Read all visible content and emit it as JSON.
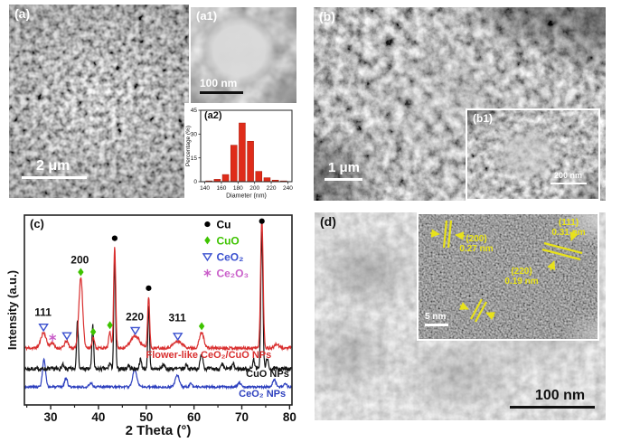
{
  "figure": {
    "panels": {
      "a": {
        "label": "(a)",
        "scale_bar": "2 μm"
      },
      "a1": {
        "label": "(a1)",
        "scale_bar": "100 nm"
      },
      "a2": {
        "label": "(a2)"
      },
      "b": {
        "label": "(b)",
        "scale_bar": "1 μm"
      },
      "b1": {
        "label": "(b1)",
        "scale_bar": "200 nm"
      },
      "c": {
        "label": "(c)"
      },
      "d": {
        "label": "(d)",
        "scale_bar": "100 nm",
        "inset": {
          "scale_bar": "5 nm",
          "annotations": [
            {
              "plane": "(200)",
              "spacing": "0.27 nm"
            },
            {
              "plane": "(111)",
              "spacing": "0.31 nm"
            },
            {
              "plane": "(220)",
              "spacing": "0.19 nm"
            }
          ]
        }
      }
    },
    "colors": {
      "tem_annotation_yellow": "#e8e21a"
    }
  },
  "chart_data": [
    {
      "panel": "c",
      "type": "line",
      "title": "",
      "xlabel": "2 Theta (°)",
      "ylabel": "Intensity (a.u.)",
      "xlim": [
        24.5,
        80.5
      ],
      "xticks": [
        30,
        40,
        50,
        60,
        70,
        80
      ],
      "xminor": [
        25,
        35,
        45,
        55,
        65,
        75
      ],
      "grid": false,
      "legend_position": "upper-right-inside",
      "legend_x": 62.8,
      "legend_rows": [
        0.952,
        0.867,
        0.781,
        0.695
      ],
      "legend": [
        {
          "label": "Cu",
          "marker": "dot",
          "color": "#000000"
        },
        {
          "label": "CuO",
          "marker": "diamond",
          "color": "#3ec300"
        },
        {
          "label": "CeO₂",
          "marker": "triangle",
          "color": "#3a50cf"
        },
        {
          "label": "Ce₂O₃",
          "marker": "asterisk",
          "color": "#c95dc9"
        }
      ],
      "series": [
        {
          "name": "CeO₂ NPs",
          "color": "#2c3fbe",
          "baseline": 0.095,
          "noise": 0.006,
          "seed": 3,
          "label_x": 79.2,
          "label_y": 0.043,
          "peaks": [
            [
              28.6,
              0.143,
              0.75
            ],
            [
              33.2,
              0.048,
              0.7
            ],
            [
              38.4,
              0.022,
              0.7
            ],
            [
              47.6,
              0.095,
              1.0
            ],
            [
              56.5,
              0.062,
              1.0
            ],
            [
              59.3,
              0.02,
              0.6
            ],
            [
              69.5,
              0.02,
              0.8
            ],
            [
              76.8,
              0.038,
              0.8
            ],
            [
              79.1,
              0.02,
              0.6
            ]
          ]
        },
        {
          "name": "CuO NPs",
          "color": "#141414",
          "baseline": 0.19,
          "noise": 0.011,
          "seed": 7,
          "label_x": 79.9,
          "label_y": 0.148,
          "peaks": [
            [
              32.5,
              0.022,
              0.45
            ],
            [
              35.6,
              0.267,
              0.42
            ],
            [
              38.8,
              0.229,
              0.42
            ],
            [
              42.4,
              0.03,
              0.5
            ],
            [
              43.4,
              0.6,
              0.42
            ],
            [
              46.3,
              0.02,
              0.5
            ],
            [
              48.8,
              0.048,
              0.55
            ],
            [
              50.5,
              0.324,
              0.42
            ],
            [
              53.6,
              0.026,
              0.5
            ],
            [
              58.4,
              0.026,
              0.5
            ],
            [
              61.6,
              0.076,
              0.7
            ],
            [
              65.9,
              0.022,
              0.5
            ],
            [
              68.2,
              0.026,
              0.5
            ],
            [
              72.5,
              0.05,
              0.5
            ],
            [
              74.2,
              0.73,
              0.5
            ],
            [
              75.3,
              0.06,
              0.45
            ]
          ]
        },
        {
          "name": "Flower-like CeO₂/CuO NPs",
          "color": "#d92f2f",
          "baseline": 0.3,
          "noise": 0.008,
          "seed": 11,
          "label_x": 76.2,
          "label_y": 0.248,
          "peaks": [
            [
              28.5,
              0.081,
              1.3
            ],
            [
              30.3,
              0.03,
              0.8
            ],
            [
              33.3,
              0.036,
              0.9
            ],
            [
              36.3,
              0.367,
              0.95
            ],
            [
              38.9,
              0.055,
              0.6
            ],
            [
              42.4,
              0.088,
              0.55
            ],
            [
              43.4,
              0.538,
              0.5
            ],
            [
              47.7,
              0.062,
              2.2
            ],
            [
              50.5,
              0.271,
              0.5
            ],
            [
              56.6,
              0.034,
              2.2
            ],
            [
              61.6,
              0.081,
              1.1
            ],
            [
              74.2,
              0.69,
              0.6
            ],
            [
              77.3,
              0.02,
              1.0
            ]
          ]
        }
      ],
      "markers": [
        {
          "type": "dot",
          "color": "#000000",
          "points": [
            [
              43.4,
              0.878
            ],
            [
              50.5,
              0.615
            ],
            [
              74.2,
              0.968
            ]
          ]
        },
        {
          "type": "diamond",
          "color": "#3ec300",
          "points": [
            [
              36.3,
              0.7
            ],
            [
              38.9,
              0.385
            ],
            [
              42.4,
              0.42
            ],
            [
              61.6,
              0.415
            ]
          ]
        },
        {
          "type": "triangle",
          "color": "#3a50cf",
          "points": [
            [
              28.5,
              0.41
            ],
            [
              33.4,
              0.365
            ],
            [
              47.7,
              0.392
            ],
            [
              56.6,
              0.362
            ]
          ]
        },
        {
          "type": "asterisk",
          "color": "#c95dc9",
          "points": [
            [
              30.4,
              0.355
            ]
          ]
        }
      ],
      "peak_labels": [
        [
          "111",
          28.4,
          0.47
        ],
        [
          "200",
          36.1,
          0.745
        ],
        [
          "220",
          47.6,
          0.445
        ],
        [
          "311",
          56.5,
          0.44
        ]
      ]
    },
    {
      "panel": "a2",
      "type": "bar",
      "title": "",
      "xlabel": "Diameter (nm)",
      "ylabel": "Percentage (%)",
      "xlim": [
        135,
        245
      ],
      "ylim": [
        0,
        45
      ],
      "xticks": [
        140,
        160,
        180,
        200,
        220,
        240
      ],
      "yticks": [
        0,
        15,
        30,
        45
      ],
      "bar_color": "#df2c1a",
      "categories": [
        145,
        155,
        165,
        175,
        185,
        195,
        205,
        215,
        225,
        235
      ],
      "values": [
        0.5,
        1.5,
        4.5,
        23,
        37,
        25.5,
        6.5,
        2.5,
        1,
        0.5
      ]
    }
  ]
}
